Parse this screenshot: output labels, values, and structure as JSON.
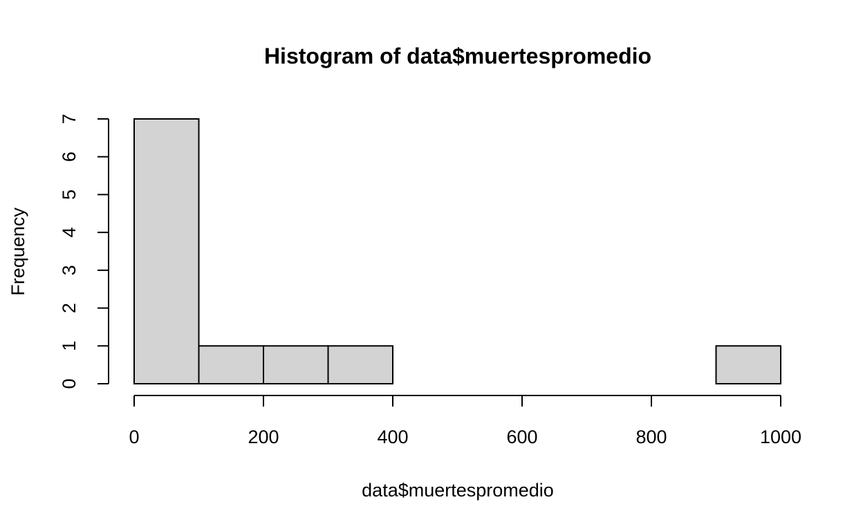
{
  "chart_data": {
    "type": "bar",
    "title": "Histogram of data$muertespromedio",
    "xlabel": "data$muertespromedio",
    "ylabel": "Frequency",
    "bin_edges": [
      0,
      100,
      200,
      300,
      400,
      500,
      600,
      700,
      800,
      900,
      1000
    ],
    "values": [
      7,
      1,
      1,
      1,
      0,
      0,
      0,
      0,
      0,
      1
    ],
    "xlim": [
      0,
      1000
    ],
    "ylim": [
      0,
      7
    ],
    "x_ticks": [
      0,
      200,
      400,
      600,
      800,
      1000
    ],
    "y_ticks": [
      0,
      1,
      2,
      3,
      4,
      5,
      6,
      7
    ],
    "bar_color": "#d3d3d3",
    "grid": false,
    "legend": "none"
  }
}
